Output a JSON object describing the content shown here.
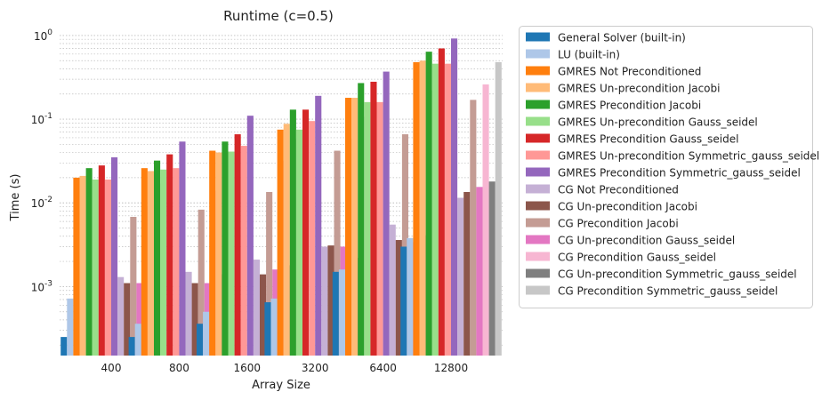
{
  "chart_data": {
    "type": "bar",
    "title": "Runtime (c=0.5)",
    "xlabel": "Array Size",
    "ylabel": "Time (s)",
    "yscale": "log",
    "ylim": [
      0.00015,
      1.1
    ],
    "y_ticks": [
      {
        "value": 0.001,
        "label": "10^-3"
      },
      {
        "value": 0.01,
        "label": "10^-2"
      },
      {
        "value": 0.1,
        "label": "10^-1"
      },
      {
        "value": 1,
        "label": "10^0"
      }
    ],
    "grid": "y-major-and-minor-dotted",
    "legend_position": "outside-right",
    "categories": [
      "400",
      "800",
      "1600",
      "3200",
      "6400",
      "12800"
    ],
    "series": [
      {
        "name": "General Solver (built-in)",
        "color": "#1f77b4",
        "values": [
          0.00025,
          0.00025,
          0.00036,
          0.00065,
          0.0015,
          0.003
        ]
      },
      {
        "name": "LU (built-in)",
        "color": "#aec7e8",
        "values": [
          0.00072,
          0.00036,
          0.0005,
          0.00072,
          0.0016,
          0.0038
        ]
      },
      {
        "name": "GMRES Not Preconditioned",
        "color": "#ff7f0e",
        "values": [
          0.02,
          0.026,
          0.042,
          0.075,
          0.18,
          0.48
        ]
      },
      {
        "name": "GMRES Un-precondition Jacobi",
        "color": "#ffbb78",
        "values": [
          0.021,
          0.024,
          0.04,
          0.088,
          0.18,
          0.5
        ]
      },
      {
        "name": "GMRES Precondition Jacobi",
        "color": "#2ca02c",
        "values": [
          0.026,
          0.032,
          0.054,
          0.13,
          0.27,
          0.64
        ]
      },
      {
        "name": "GMRES Un-precondition Gauss_seidel",
        "color": "#98df8a",
        "values": [
          0.019,
          0.025,
          0.041,
          0.075,
          0.16,
          0.46
        ]
      },
      {
        "name": "GMRES Precondition Gauss_seidel",
        "color": "#d62728",
        "values": [
          0.028,
          0.038,
          0.066,
          0.13,
          0.28,
          0.7
        ]
      },
      {
        "name": "GMRES Un-precondition Symmetric_gauss_seidel",
        "color": "#ff9896",
        "values": [
          0.019,
          0.026,
          0.048,
          0.095,
          0.16,
          0.46
        ]
      },
      {
        "name": "GMRES Precondition Symmetric_gauss_seidel",
        "color": "#9467bd",
        "values": [
          0.035,
          0.054,
          0.11,
          0.19,
          0.37,
          0.92
        ]
      },
      {
        "name": "CG Not Preconditioned",
        "color": "#c5b0d5",
        "values": [
          0.0013,
          0.0015,
          0.0021,
          0.003,
          0.0055,
          0.0115
        ]
      },
      {
        "name": "CG Un-precondition Jacobi",
        "color": "#8c564b",
        "values": [
          0.0011,
          0.0011,
          0.0014,
          0.0031,
          0.0036,
          0.0135
        ]
      },
      {
        "name": "CG Precondition Jacobi",
        "color": "#c49c94",
        "values": [
          0.0068,
          0.0083,
          0.0135,
          0.042,
          0.066,
          0.17
        ]
      },
      {
        "name": "CG Un-precondition Gauss_seidel",
        "color": "#e377c2",
        "values": [
          0.0011,
          0.0011,
          0.0016,
          0.003,
          0.0034,
          0.0155
        ]
      },
      {
        "name": "CG Precondition Gauss_seidel",
        "color": "#f7b6d2",
        "values": [
          0.009,
          0.014,
          0.032,
          0.059,
          0.115,
          0.26
        ]
      },
      {
        "name": "CG Un-precondition Symmetric_gauss_seidel",
        "color": "#7f7f7f",
        "values": [
          0.0011,
          0.0014,
          0.0018,
          0.0022,
          0.0041,
          0.018
        ]
      },
      {
        "name": "CG Precondition Symmetric_gauss_seidel",
        "color": "#c7c7c7",
        "values": [
          0.017,
          0.028,
          0.058,
          0.107,
          0.22,
          0.48
        ]
      }
    ]
  }
}
